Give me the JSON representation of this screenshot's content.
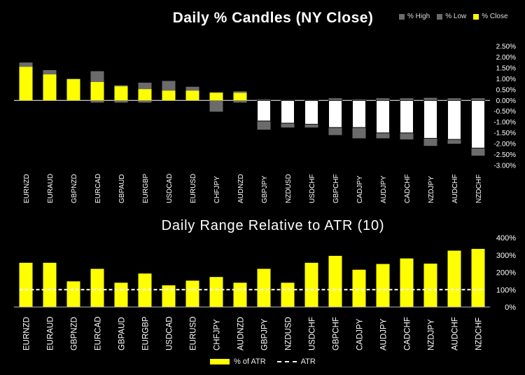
{
  "chart_data": [
    {
      "type": "candlestick",
      "title": "Daily % Candles (NY Close)",
      "legend": [
        "% High",
        "% Low",
        "% Close"
      ],
      "legend_colors": [
        "#6b6b6b",
        "#6b6b6b",
        "#ffff00"
      ],
      "ylim": [
        -3.0,
        2.5
      ],
      "yticks": [
        2.5,
        2.0,
        1.5,
        1.0,
        0.5,
        0.0,
        -0.5,
        -1.0,
        -1.5,
        -2.0,
        -2.5,
        -3.0
      ],
      "ytick_labels": [
        "2.50%",
        "2.00%",
        "1.50%",
        "1.00%",
        "0.50%",
        "0.00%",
        "-0.50%",
        "-1.00%",
        "-1.50%",
        "-2.00%",
        "-2.50%",
        "-3.00%"
      ],
      "categories": [
        "EURNZD",
        "EURAUD",
        "GBPNZD",
        "EURCAD",
        "GBPAUD",
        "EURGBP",
        "USDCAD",
        "EURUSD",
        "CHFJPY",
        "AUDNZD",
        "GBPJPY",
        "NZDUSD",
        "USDCHF",
        "GBPCHF",
        "CADJPY",
        "AUDJPY",
        "CADCHF",
        "NZDJPY",
        "AUDCHF",
        "NZDCHF"
      ],
      "close": [
        1.55,
        1.2,
        0.98,
        0.85,
        0.65,
        0.52,
        0.45,
        0.45,
        0.35,
        0.35,
        -0.95,
        -1.05,
        -1.1,
        -1.25,
        -1.25,
        -1.5,
        -1.5,
        -1.75,
        -1.8,
        -2.2
      ],
      "high": [
        1.75,
        1.4,
        1.0,
        1.35,
        0.7,
        0.82,
        0.9,
        0.63,
        0.38,
        0.42,
        0.05,
        0.0,
        0.0,
        0.1,
        0.05,
        0.1,
        0.1,
        0.12,
        0.1,
        0.1
      ],
      "low": [
        0.0,
        0.0,
        0.0,
        -0.1,
        -0.1,
        -0.1,
        0.0,
        0.0,
        -0.52,
        -0.1,
        -1.35,
        -1.25,
        -1.25,
        -1.6,
        -1.75,
        -1.75,
        -1.8,
        -2.1,
        -2.0,
        -2.55
      ]
    },
    {
      "type": "bar",
      "title": "Daily Range Relative to ATR (10)",
      "legend": [
        "% of ATR",
        "ATR"
      ],
      "ylim": [
        0,
        400
      ],
      "yticks": [
        400,
        300,
        200,
        100,
        0
      ],
      "ytick_labels": [
        "400%",
        "300%",
        "200%",
        "100%",
        "0%"
      ],
      "categories": [
        "EURNZD",
        "EURAUD",
        "GBPNZD",
        "EURCAD",
        "GBPAUD",
        "EURGBP",
        "USDCAD",
        "EURUSD",
        "CHFJPY",
        "AUDNZD",
        "GBPJPY",
        "NZDUSD",
        "USDCHF",
        "GBPCHF",
        "CADJPY",
        "AUDJPY",
        "CADCHF",
        "NZDJPY",
        "AUDCHF",
        "NZDCHF"
      ],
      "values": [
        255,
        255,
        148,
        220,
        140,
        193,
        125,
        152,
        173,
        140,
        220,
        140,
        255,
        295,
        215,
        248,
        280,
        250,
        325,
        335
      ],
      "atr_line": 100
    }
  ],
  "colors": {
    "positive": "#ffff00",
    "negative": "#ffffff",
    "wick": "#6b6b6b",
    "axis_text": "#ffffff"
  }
}
